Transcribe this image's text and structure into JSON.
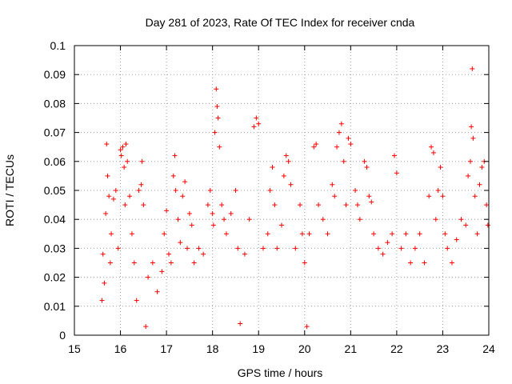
{
  "chart_data": {
    "type": "scatter",
    "title": "Day 281 of 2023, Rate Of TEC Index for receiver cnda",
    "xlabel": "GPS time / hours",
    "ylabel": "ROTI / TECUs",
    "xlim": [
      15,
      24
    ],
    "ylim": [
      0,
      0.1
    ],
    "x_ticks": [
      "15",
      "16",
      "17",
      "18",
      "19",
      "20",
      "21",
      "22",
      "23",
      "24"
    ],
    "y_ticks": [
      "0",
      "0.01",
      "0.02",
      "0.03",
      "0.04",
      "0.05",
      "0.06",
      "0.07",
      "0.08",
      "0.09",
      "0.1"
    ],
    "grid": true,
    "marker": "+",
    "color": "#ff0000",
    "series": [
      {
        "points": [
          [
            15.6,
            0.012
          ],
          [
            15.62,
            0.028
          ],
          [
            15.65,
            0.018
          ],
          [
            15.68,
            0.042
          ],
          [
            15.7,
            0.066
          ],
          [
            15.72,
            0.055
          ],
          [
            15.75,
            0.048
          ],
          [
            15.78,
            0.025
          ],
          [
            15.8,
            0.035
          ],
          [
            15.85,
            0.047
          ],
          [
            15.9,
            0.05
          ],
          [
            15.95,
            0.03
          ],
          [
            16.0,
            0.064
          ],
          [
            16.02,
            0.062
          ],
          [
            16.05,
            0.065
          ],
          [
            16.08,
            0.058
          ],
          [
            16.1,
            0.045
          ],
          [
            16.12,
            0.066
          ],
          [
            16.15,
            0.06
          ],
          [
            16.2,
            0.048
          ],
          [
            16.25,
            0.035
          ],
          [
            16.3,
            0.025
          ],
          [
            16.35,
            0.012
          ],
          [
            16.4,
            0.05
          ],
          [
            16.45,
            0.052
          ],
          [
            16.47,
            0.06
          ],
          [
            16.5,
            0.045
          ],
          [
            16.55,
            0.003
          ],
          [
            16.6,
            0.02
          ],
          [
            16.7,
            0.025
          ],
          [
            16.8,
            0.015
          ],
          [
            16.9,
            0.022
          ],
          [
            16.95,
            0.035
          ],
          [
            17.0,
            0.043
          ],
          [
            17.05,
            0.028
          ],
          [
            17.1,
            0.025
          ],
          [
            17.15,
            0.055
          ],
          [
            17.18,
            0.062
          ],
          [
            17.2,
            0.05
          ],
          [
            17.25,
            0.04
          ],
          [
            17.3,
            0.032
          ],
          [
            17.35,
            0.048
          ],
          [
            17.4,
            0.053
          ],
          [
            17.45,
            0.03
          ],
          [
            17.5,
            0.042
          ],
          [
            17.55,
            0.038
          ],
          [
            17.6,
            0.025
          ],
          [
            17.7,
            0.03
          ],
          [
            17.8,
            0.028
          ],
          [
            17.9,
            0.045
          ],
          [
            17.95,
            0.05
          ],
          [
            18.0,
            0.042
          ],
          [
            18.02,
            0.038
          ],
          [
            18.05,
            0.07
          ],
          [
            18.08,
            0.085
          ],
          [
            18.1,
            0.079
          ],
          [
            18.12,
            0.075
          ],
          [
            18.15,
            0.065
          ],
          [
            18.2,
            0.045
          ],
          [
            18.25,
            0.04
          ],
          [
            18.3,
            0.035
          ],
          [
            18.4,
            0.042
          ],
          [
            18.5,
            0.05
          ],
          [
            18.55,
            0.03
          ],
          [
            18.6,
            0.004
          ],
          [
            18.7,
            0.028
          ],
          [
            18.8,
            0.04
          ],
          [
            18.9,
            0.072
          ],
          [
            18.95,
            0.075
          ],
          [
            19.0,
            0.073
          ],
          [
            19.1,
            0.03
          ],
          [
            19.2,
            0.035
          ],
          [
            19.25,
            0.05
          ],
          [
            19.3,
            0.058
          ],
          [
            19.35,
            0.045
          ],
          [
            19.4,
            0.03
          ],
          [
            19.5,
            0.038
          ],
          [
            19.55,
            0.055
          ],
          [
            19.6,
            0.062
          ],
          [
            19.65,
            0.06
          ],
          [
            19.7,
            0.052
          ],
          [
            19.8,
            0.03
          ],
          [
            19.9,
            0.045
          ],
          [
            19.95,
            0.035
          ],
          [
            20.0,
            0.025
          ],
          [
            20.05,
            0.003
          ],
          [
            20.1,
            0.035
          ],
          [
            20.2,
            0.065
          ],
          [
            20.25,
            0.066
          ],
          [
            20.3,
            0.045
          ],
          [
            20.4,
            0.04
          ],
          [
            20.5,
            0.035
          ],
          [
            20.6,
            0.052
          ],
          [
            20.65,
            0.048
          ],
          [
            20.7,
            0.065
          ],
          [
            20.75,
            0.07
          ],
          [
            20.8,
            0.073
          ],
          [
            20.85,
            0.06
          ],
          [
            20.9,
            0.045
          ],
          [
            20.95,
            0.068
          ],
          [
            21.0,
            0.066
          ],
          [
            21.1,
            0.05
          ],
          [
            21.15,
            0.045
          ],
          [
            21.2,
            0.04
          ],
          [
            21.3,
            0.06
          ],
          [
            21.35,
            0.058
          ],
          [
            21.4,
            0.048
          ],
          [
            21.45,
            0.046
          ],
          [
            21.5,
            0.035
          ],
          [
            21.6,
            0.03
          ],
          [
            21.7,
            0.028
          ],
          [
            21.8,
            0.032
          ],
          [
            21.9,
            0.035
          ],
          [
            21.95,
            0.062
          ],
          [
            22.0,
            0.056
          ],
          [
            22.1,
            0.03
          ],
          [
            22.2,
            0.035
          ],
          [
            22.3,
            0.025
          ],
          [
            22.4,
            0.03
          ],
          [
            22.5,
            0.035
          ],
          [
            22.6,
            0.025
          ],
          [
            22.7,
            0.048
          ],
          [
            22.75,
            0.065
          ],
          [
            22.8,
            0.063
          ],
          [
            22.85,
            0.04
          ],
          [
            22.9,
            0.05
          ],
          [
            22.95,
            0.058
          ],
          [
            23.0,
            0.048
          ],
          [
            23.05,
            0.035
          ],
          [
            23.1,
            0.03
          ],
          [
            23.2,
            0.025
          ],
          [
            23.3,
            0.033
          ],
          [
            23.4,
            0.04
          ],
          [
            23.5,
            0.038
          ],
          [
            23.55,
            0.055
          ],
          [
            23.6,
            0.06
          ],
          [
            23.62,
            0.072
          ],
          [
            23.64,
            0.092
          ],
          [
            23.66,
            0.068
          ],
          [
            23.7,
            0.048
          ],
          [
            23.75,
            0.035
          ],
          [
            23.8,
            0.052
          ],
          [
            23.85,
            0.058
          ],
          [
            23.9,
            0.06
          ],
          [
            23.95,
            0.045
          ],
          [
            23.98,
            0.038
          ]
        ]
      }
    ]
  }
}
